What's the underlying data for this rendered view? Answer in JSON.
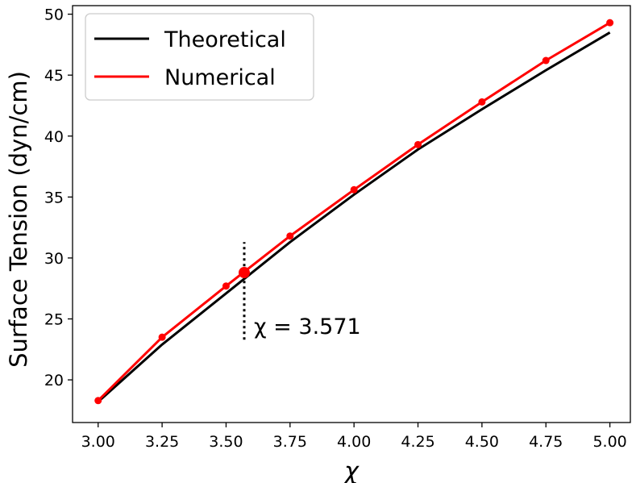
{
  "chart_data": {
    "type": "line",
    "xlabel": "χ",
    "ylabel": "Surface Tension (dyn/cm)",
    "xlim": [
      2.9,
      5.08
    ],
    "ylim": [
      16.5,
      50.7
    ],
    "x_ticks": [
      "3.00",
      "3.25",
      "3.50",
      "3.75",
      "4.00",
      "4.25",
      "4.50",
      "4.75",
      "5.00"
    ],
    "x_tick_values": [
      3.0,
      3.25,
      3.5,
      3.75,
      4.0,
      4.25,
      4.5,
      4.75,
      5.0
    ],
    "y_ticks": [
      "20",
      "25",
      "30",
      "35",
      "40",
      "45",
      "50"
    ],
    "y_tick_values": [
      20,
      25,
      30,
      35,
      40,
      45,
      50
    ],
    "grid": false,
    "legend_position": "top-left",
    "series": [
      {
        "name": "Theoretical",
        "color": "#000000",
        "marker": false,
        "x": [
          3.0,
          3.25,
          3.5,
          3.75,
          4.0,
          4.25,
          4.5,
          4.75,
          5.0
        ],
        "y": [
          18.2,
          22.9,
          27.1,
          31.3,
          35.2,
          38.9,
          42.2,
          45.4,
          48.5
        ]
      },
      {
        "name": "Numerical",
        "color": "#ff0000",
        "marker": true,
        "x": [
          3.0,
          3.25,
          3.5,
          3.75,
          4.0,
          4.25,
          4.5,
          4.75,
          5.0
        ],
        "y": [
          18.3,
          23.5,
          27.7,
          31.8,
          35.6,
          39.3,
          42.8,
          46.2,
          49.3
        ]
      }
    ],
    "annotation": {
      "text": "χ = 3.571",
      "x": 3.571,
      "y": 28.8,
      "line_y": [
        23.3,
        31.3
      ]
    }
  }
}
